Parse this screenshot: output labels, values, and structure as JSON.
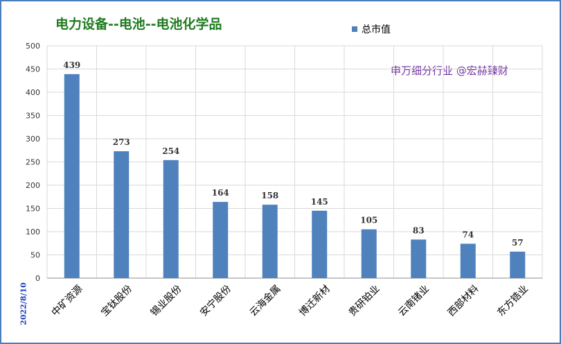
{
  "chart_data": {
    "type": "bar",
    "title": "电力设备--电池--电池化学品",
    "watermark": "申万细分行业 @宏赫臻财",
    "date": "2022/8/10",
    "legend": [
      "总市值"
    ],
    "legend_position": "top-right",
    "categories": [
      "中矿资源",
      "宝钛股份",
      "锡业股份",
      "安宁股份",
      "云海金属",
      "博迁新材",
      "贵研铂业",
      "云南锗业",
      "西部材料",
      "东方锆业"
    ],
    "series": [
      {
        "name": "总市值",
        "values": [
          439,
          273,
          254,
          164,
          158,
          145,
          105,
          83,
          74,
          57
        ]
      }
    ],
    "ylim": [
      0,
      500
    ],
    "yticks": [
      0,
      50,
      100,
      150,
      200,
      250,
      300,
      350,
      400,
      450,
      500
    ],
    "grid": true,
    "bar_color": "#4f81bd"
  }
}
